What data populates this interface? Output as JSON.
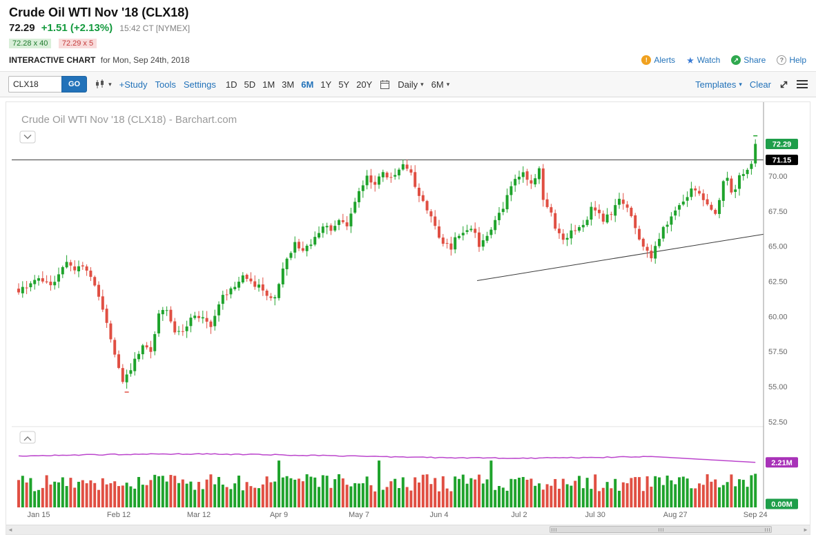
{
  "quote": {
    "title": "Crude Oil WTI Nov '18 (CLX18)",
    "last": "72.29",
    "change": "+1.51 (+2.13%)",
    "time": "15:42 CT [NYMEX]",
    "bid": "72.28 x 40",
    "ask": "72.29 x 5"
  },
  "subheader": {
    "label": "INTERACTIVE CHART",
    "for_date": "for Mon, Sep 24th, 2018",
    "links": [
      {
        "icon": "alert-icon",
        "label": "Alerts"
      },
      {
        "icon": "star-icon",
        "label": "Watch"
      },
      {
        "icon": "share-icon",
        "label": "Share"
      },
      {
        "icon": "help-icon",
        "label": "Help"
      }
    ]
  },
  "toolbar": {
    "symbol_value": "CLX18",
    "go_label": "GO",
    "study_label": "+Study",
    "tools_label": "Tools",
    "settings_label": "Settings",
    "ranges": [
      "1D",
      "5D",
      "1M",
      "3M",
      "6M",
      "1Y",
      "5Y",
      "20Y"
    ],
    "active_range": "6M",
    "frequency_label": "Daily",
    "period_label": "6M",
    "templates_label": "Templates",
    "clear_label": "Clear"
  },
  "chart_data": {
    "type": "candlestick",
    "title": "Crude Oil WTI Nov '18 (CLX18) - Barchart.com",
    "symbol": "CLX18",
    "frequency": "Daily",
    "range": "6M",
    "num_bars": 185,
    "ylim": [
      52.0,
      75.3
    ],
    "y_tick_labels": [
      "70.00",
      "67.50",
      "65.00",
      "62.50",
      "60.00",
      "57.50",
      "55.00",
      "52.50"
    ],
    "x_tick_labels": [
      "Jan 15",
      "Feb 12",
      "Mar 12",
      "Apr 9",
      "May 7",
      "Jun 4",
      "Jul 2",
      "Jul 30",
      "Aug 27",
      "Sep 24"
    ],
    "x_tick_indices": [
      5,
      25,
      45,
      65,
      85,
      105,
      125,
      144,
      164,
      184
    ],
    "close_trajectory": [
      [
        0,
        61.8
      ],
      [
        3,
        62.3
      ],
      [
        5,
        62.6
      ],
      [
        8,
        62.2
      ],
      [
        12,
        63.8
      ],
      [
        14,
        63.4
      ],
      [
        16,
        63.7
      ],
      [
        19,
        62.2
      ],
      [
        22,
        59.6
      ],
      [
        24,
        57.2
      ],
      [
        26,
        55.3
      ],
      [
        28,
        56.2
      ],
      [
        31,
        58.1
      ],
      [
        33,
        57.4
      ],
      [
        35,
        60.2
      ],
      [
        37,
        60.4
      ],
      [
        39,
        58.7
      ],
      [
        41,
        58.9
      ],
      [
        43,
        59.9
      ],
      [
        46,
        60.0
      ],
      [
        48,
        59.3
      ],
      [
        51,
        61.4
      ],
      [
        54,
        62.2
      ],
      [
        56,
        62.9
      ],
      [
        58,
        62.4
      ],
      [
        60,
        62.1
      ],
      [
        62,
        61.5
      ],
      [
        64,
        61.3
      ],
      [
        66,
        63.4
      ],
      [
        69,
        65.3
      ],
      [
        71,
        64.7
      ],
      [
        73,
        65.2
      ],
      [
        76,
        66.5
      ],
      [
        78,
        66.2
      ],
      [
        80,
        66.9
      ],
      [
        82,
        66.4
      ],
      [
        84,
        68.3
      ],
      [
        87,
        69.9
      ],
      [
        89,
        69.5
      ],
      [
        91,
        70.2
      ],
      [
        93,
        69.8
      ],
      [
        96,
        70.7
      ],
      [
        98,
        70.1
      ],
      [
        99,
        69.2
      ],
      [
        101,
        68.3
      ],
      [
        103,
        67.0
      ],
      [
        105,
        65.6
      ],
      [
        106,
        65.3
      ],
      [
        108,
        64.9
      ],
      [
        109,
        65.6
      ],
      [
        112,
        66.3
      ],
      [
        114,
        65.9
      ],
      [
        115,
        65.1
      ],
      [
        117,
        65.6
      ],
      [
        119,
        66.9
      ],
      [
        121,
        67.8
      ],
      [
        122,
        68.6
      ],
      [
        124,
        69.9
      ],
      [
        126,
        70.2
      ],
      [
        128,
        69.4
      ],
      [
        130,
        70.4
      ],
      [
        131,
        68.2
      ],
      [
        133,
        67.4
      ],
      [
        134,
        66.2
      ],
      [
        136,
        65.4
      ],
      [
        138,
        66.0
      ],
      [
        140,
        66.3
      ],
      [
        142,
        67.0
      ],
      [
        143,
        67.8
      ],
      [
        145,
        67.2
      ],
      [
        146,
        66.9
      ],
      [
        148,
        67.4
      ],
      [
        150,
        68.3
      ],
      [
        152,
        67.8
      ],
      [
        153,
        67.2
      ],
      [
        155,
        65.6
      ],
      [
        156,
        64.8
      ],
      [
        158,
        64.3
      ],
      [
        160,
        65.6
      ],
      [
        161,
        66.4
      ],
      [
        163,
        67.0
      ],
      [
        165,
        67.9
      ],
      [
        167,
        68.6
      ],
      [
        168,
        69.2
      ],
      [
        170,
        68.9
      ],
      [
        171,
        68.4
      ],
      [
        173,
        67.6
      ],
      [
        174,
        67.3
      ],
      [
        176,
        69.6
      ],
      [
        177,
        70.0
      ],
      [
        178,
        68.7
      ],
      [
        179,
        68.9
      ],
      [
        180,
        69.9
      ],
      [
        182,
        70.4
      ],
      [
        183,
        70.8
      ],
      [
        184,
        72.29
      ]
    ],
    "last_bar": {
      "open": 70.9,
      "high": 72.62,
      "low": 70.65,
      "close": 72.29
    },
    "lowest_low": 54.85,
    "last_price_label": "72.29",
    "resistance_line": {
      "value": 71.15,
      "label": "71.15"
    },
    "trend_line": {
      "from_index": 114.5,
      "from_value": 62.55,
      "to_index": 186,
      "to_value": 65.85
    },
    "volume_pane": {
      "open_interest_label": "2.21M",
      "open_interest_end": 2.21,
      "open_interest_base": 2.52,
      "volume_label": "0.00M",
      "spike_indices": [
        65,
        90,
        118
      ],
      "spike_value": 2.3,
      "last_volume": 1.65
    },
    "colors": {
      "up": "#1fa32c",
      "down": "#e04f43",
      "open_interest": "#bb44cc",
      "line": "#3a3a3a",
      "last_badge": "#1e9e4a",
      "resistance_badge": "#000000",
      "oi_badge": "#a832b8",
      "volume_badge": "#1e9e4a",
      "axis_text": "#666666",
      "watermark": "#999999"
    }
  }
}
